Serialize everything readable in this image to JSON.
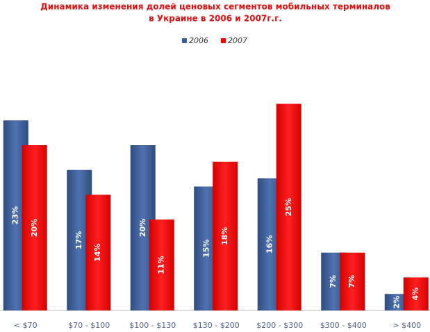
{
  "chart_data": {
    "type": "bar",
    "title": [
      "Динамика изменения долей ценовых сегментов мобильных терминалов",
      "в Украине в 2006 и 2007г.г."
    ],
    "categories": [
      "< $70",
      "$70 - $100",
      "$100 - $130",
      "$130 - $200",
      "$200 - $300",
      "$300 - $400",
      "> $400"
    ],
    "series": [
      {
        "name": "2006",
        "color": "#3c5f9c",
        "values": [
          23,
          17,
          20,
          15,
          16,
          7,
          2
        ],
        "value_labels": [
          "23%",
          "17%",
          "20%",
          "15%",
          "16%",
          "7%",
          "2%"
        ]
      },
      {
        "name": "2007",
        "color": "#ff0000",
        "values": [
          20,
          14,
          11,
          18,
          25,
          7,
          4
        ],
        "value_labels": [
          "20%",
          "14%",
          "11%",
          "18%",
          "25%",
          "7%",
          "4%"
        ]
      }
    ],
    "ylim": [
      0,
      30
    ],
    "legend": "top"
  }
}
